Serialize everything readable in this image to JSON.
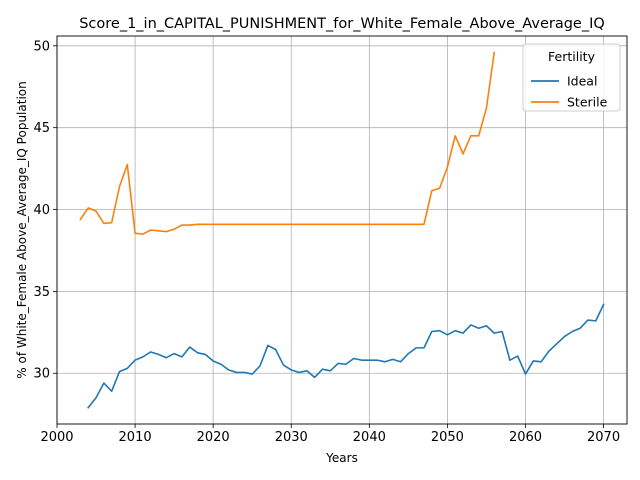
{
  "chart_data": {
    "type": "line",
    "title": "Score_1_in_CAPITAL_PUNISHMENT_for_White_Female_Above_Average_IQ",
    "xlabel": "Years",
    "ylabel": "% of White_Female Above_Average_IQ Population",
    "xlim": [
      2000,
      2073
    ],
    "ylim": [
      26.9,
      50.6
    ],
    "xticks": [
      2000,
      2010,
      2020,
      2030,
      2040,
      2050,
      2060,
      2070
    ],
    "yticks": [
      30,
      35,
      40,
      45,
      50
    ],
    "grid": true,
    "legend": {
      "title": "Fertility",
      "placement": "top-right"
    },
    "series": [
      {
        "name": "Ideal",
        "color": "#1f77b4",
        "x": [
          2004,
          2005,
          2006,
          2007,
          2008,
          2009,
          2010,
          2011,
          2012,
          2013,
          2014,
          2015,
          2016,
          2017,
          2018,
          2019,
          2020,
          2021,
          2022,
          2023,
          2024,
          2025,
          2026,
          2027,
          2028,
          2029,
          2030,
          2031,
          2032,
          2033,
          2034,
          2035,
          2036,
          2037,
          2038,
          2039,
          2040,
          2041,
          2042,
          2043,
          2044,
          2045,
          2046,
          2047,
          2048,
          2049,
          2050,
          2051,
          2052,
          2053,
          2054,
          2055,
          2056,
          2057,
          2058,
          2059,
          2060,
          2061,
          2062,
          2063,
          2064,
          2065,
          2066,
          2067,
          2068,
          2069,
          2070
        ],
        "values": [
          27.9,
          28.5,
          29.4,
          28.9,
          30.1,
          30.3,
          30.8,
          31.0,
          31.3,
          31.15,
          30.95,
          31.2,
          31.0,
          31.6,
          31.25,
          31.15,
          30.75,
          30.55,
          30.2,
          30.05,
          30.05,
          29.95,
          30.45,
          31.7,
          31.45,
          30.5,
          30.2,
          30.05,
          30.15,
          29.75,
          30.25,
          30.15,
          30.6,
          30.55,
          30.9,
          30.8,
          30.8,
          30.8,
          30.7,
          30.85,
          30.7,
          31.2,
          31.55,
          31.55,
          32.55,
          32.6,
          32.35,
          32.6,
          32.45,
          32.95,
          32.75,
          32.9,
          32.45,
          32.55,
          30.8,
          31.05,
          29.95,
          30.75,
          30.7,
          31.35,
          31.8,
          32.25,
          32.55,
          32.75,
          33.25,
          33.2,
          34.2
        ]
      },
      {
        "name": "Sterile",
        "color": "#ff7f0e",
        "x": [
          2003,
          2004,
          2005,
          2006,
          2007,
          2008,
          2009,
          2010,
          2011,
          2012,
          2013,
          2014,
          2015,
          2016,
          2017,
          2018,
          2019,
          2020,
          2021,
          2022,
          2023,
          2024,
          2025,
          2026,
          2027,
          2028,
          2029,
          2030,
          2031,
          2032,
          2033,
          2034,
          2035,
          2036,
          2037,
          2038,
          2039,
          2040,
          2041,
          2042,
          2043,
          2044,
          2045,
          2046,
          2047,
          2048,
          2049,
          2050,
          2051,
          2052,
          2053,
          2054,
          2055,
          2056
        ],
        "values": [
          39.4,
          40.1,
          39.9,
          39.15,
          39.2,
          41.4,
          42.75,
          38.55,
          38.5,
          38.75,
          38.7,
          38.65,
          38.8,
          39.05,
          39.05,
          39.1,
          39.1,
          39.1,
          39.1,
          39.1,
          39.1,
          39.1,
          39.1,
          39.1,
          39.1,
          39.1,
          39.1,
          39.1,
          39.1,
          39.1,
          39.1,
          39.1,
          39.1,
          39.1,
          39.1,
          39.1,
          39.1,
          39.1,
          39.1,
          39.1,
          39.1,
          39.1,
          39.1,
          39.1,
          39.1,
          41.15,
          41.3,
          42.6,
          44.5,
          43.4,
          44.5,
          44.5,
          46.2,
          49.6
        ]
      }
    ]
  }
}
